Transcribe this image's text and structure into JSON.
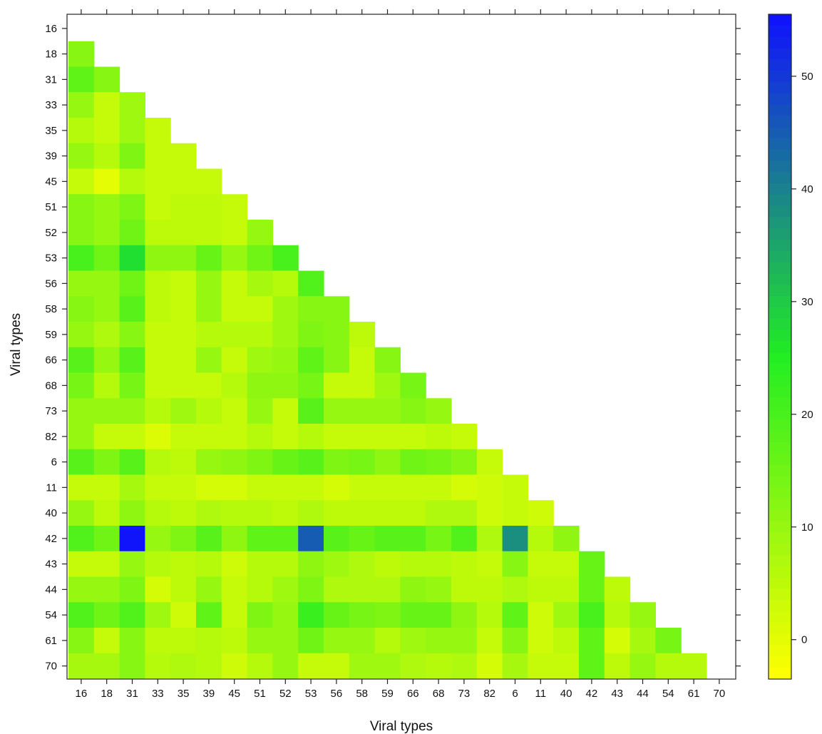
{
  "chart_data": {
    "type": "heatmap",
    "title": "",
    "xlabel": "Viral types",
    "ylabel": "Viral types",
    "x_categories": [
      "16",
      "18",
      "31",
      "33",
      "35",
      "39",
      "45",
      "51",
      "52",
      "53",
      "56",
      "58",
      "59",
      "66",
      "68",
      "73",
      "82",
      "6",
      "11",
      "40",
      "42",
      "43",
      "44",
      "54",
      "61",
      "70"
    ],
    "y_categories": [
      "16",
      "18",
      "31",
      "33",
      "35",
      "39",
      "45",
      "51",
      "52",
      "53",
      "56",
      "58",
      "59",
      "66",
      "68",
      "73",
      "82",
      "6",
      "11",
      "40",
      "42",
      "43",
      "44",
      "54",
      "61",
      "70"
    ],
    "matrix_shape": "lower-triangular (row i has values for columns 0..i-1; diagonal and upper triangle empty)",
    "values": [
      [],
      [
        12
      ],
      [
        17,
        12
      ],
      [
        10,
        4,
        9
      ],
      [
        6,
        4,
        9,
        4
      ],
      [
        10,
        6,
        13,
        4,
        4
      ],
      [
        4,
        0,
        6,
        4,
        4,
        4
      ],
      [
        12,
        10,
        13,
        4,
        5,
        5,
        4
      ],
      [
        12,
        10,
        15,
        5,
        5,
        5,
        4,
        10
      ],
      [
        20,
        15,
        27,
        11,
        11,
        16,
        10,
        15,
        20
      ],
      [
        10,
        10,
        15,
        5,
        4,
        10,
        4,
        8,
        6,
        19
      ],
      [
        12,
        10,
        18,
        5,
        4,
        10,
        4,
        4,
        9,
        12,
        12
      ],
      [
        10,
        7,
        12,
        4,
        4,
        6,
        6,
        6,
        9,
        13,
        12,
        5
      ],
      [
        18,
        10,
        18,
        4,
        4,
        10,
        4,
        9,
        10,
        17,
        12,
        4,
        12
      ],
      [
        14,
        6,
        14,
        4,
        4,
        4,
        6,
        11,
        11,
        14,
        4,
        4,
        9,
        14
      ],
      [
        10,
        10,
        10,
        6,
        9,
        6,
        4,
        10,
        4,
        18,
        10,
        10,
        10,
        12,
        10
      ],
      [
        10,
        4,
        4,
        1,
        4,
        4,
        4,
        6,
        4,
        6,
        4,
        4,
        4,
        4,
        5,
        4
      ],
      [
        18,
        13,
        18,
        6,
        5,
        10,
        11,
        13,
        16,
        18,
        13,
        14,
        11,
        15,
        14,
        12,
        4
      ],
      [
        4,
        4,
        8,
        4,
        4,
        2,
        2,
        4,
        4,
        4,
        2,
        4,
        4,
        4,
        4,
        2,
        3,
        4
      ],
      [
        10,
        5,
        11,
        6,
        5,
        7,
        6,
        6,
        5,
        7,
        5,
        5,
        5,
        5,
        7,
        7,
        3,
        4,
        3
      ],
      [
        19,
        15,
        55,
        10,
        13,
        18,
        11,
        17,
        17,
        45,
        18,
        16,
        18,
        18,
        14,
        19,
        7,
        38,
        6,
        11
      ],
      [
        4,
        4,
        10,
        6,
        5,
        6,
        3,
        6,
        6,
        11,
        9,
        7,
        5,
        6,
        6,
        5,
        4,
        12,
        4,
        4,
        16
      ],
      [
        10,
        10,
        13,
        2,
        5,
        10,
        4,
        6,
        9,
        13,
        7,
        7,
        7,
        11,
        10,
        5,
        5,
        7,
        5,
        5,
        16,
        5
      ],
      [
        19,
        15,
        19,
        9,
        3,
        17,
        4,
        13,
        10,
        22,
        16,
        14,
        13,
        16,
        16,
        11,
        6,
        17,
        3,
        9,
        20,
        6,
        10
      ],
      [
        12,
        4,
        12,
        5,
        5,
        6,
        5,
        10,
        10,
        15,
        10,
        10,
        6,
        9,
        10,
        10,
        4,
        12,
        3,
        5,
        17,
        2,
        8,
        14
      ],
      [
        8,
        8,
        12,
        6,
        7,
        6,
        3,
        6,
        10,
        4,
        4,
        9,
        9,
        7,
        6,
        7,
        2,
        8,
        4,
        4,
        17,
        5,
        10,
        6,
        6
      ]
    ],
    "colorbar": {
      "ticks": [
        0,
        10,
        20,
        30,
        40,
        50
      ],
      "range": [
        -3.5,
        55.5
      ],
      "low_color": "#ffff00",
      "mid_color": "#22ee22",
      "high_color": "#1010ff"
    },
    "grid": false,
    "legend": "colorbar-right"
  }
}
